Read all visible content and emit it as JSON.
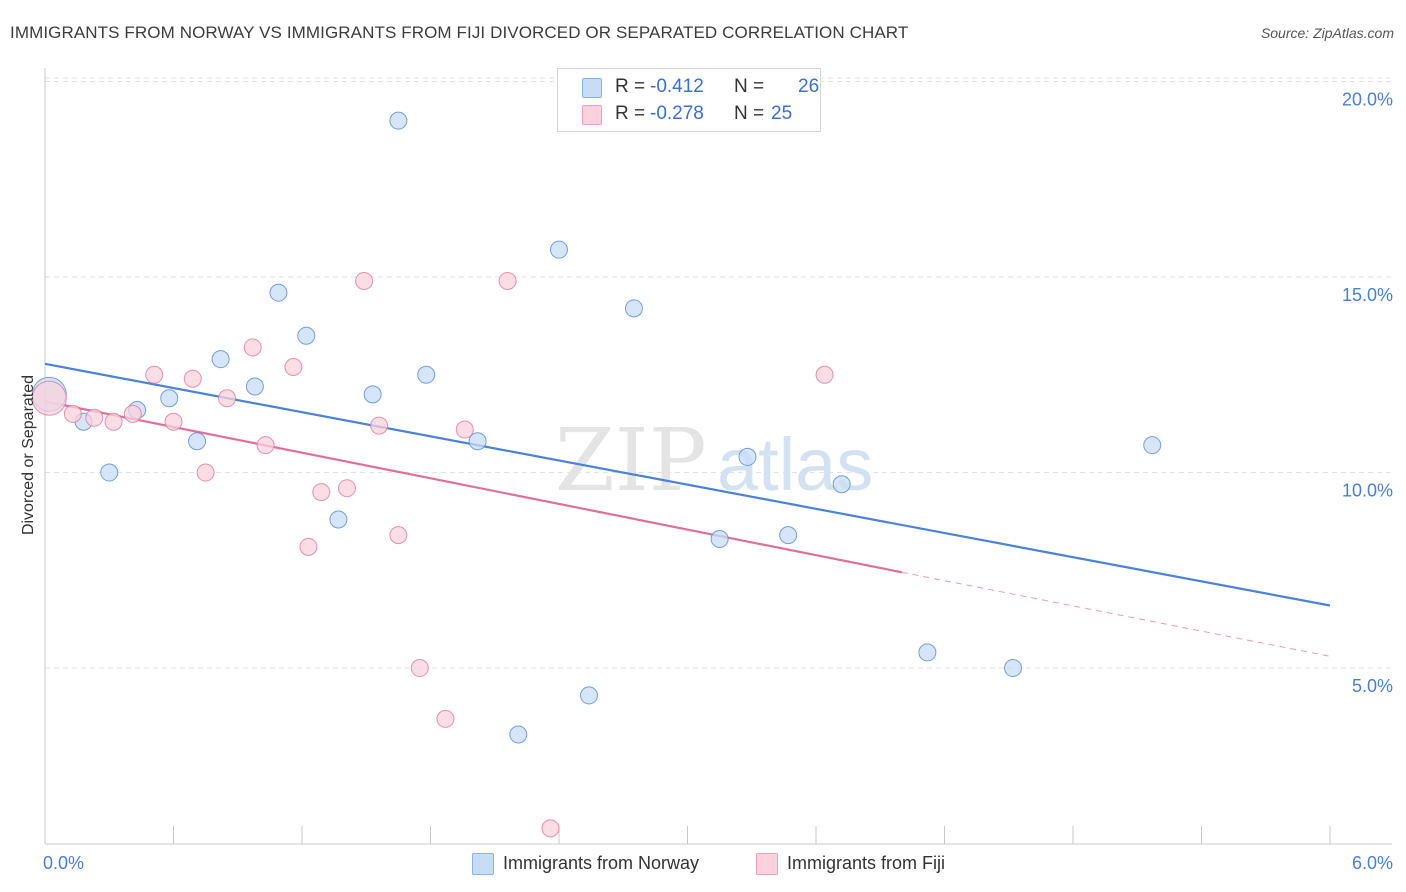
{
  "header": {
    "title": "IMMIGRANTS FROM NORWAY VS IMMIGRANTS FROM FIJI DIVORCED OR SEPARATED CORRELATION CHART",
    "source": "Source: ZipAtlas.com"
  },
  "watermark": {
    "zip": "ZIP",
    "atlas": "atlas"
  },
  "legend_top": {
    "rows": [
      {
        "r_label": "R =",
        "r_value": "-0.412",
        "n_label": "N =",
        "n_value": "26",
        "color": "#a9c8f0"
      },
      {
        "r_label": "R =",
        "r_value": "-0.278",
        "n_label": "N =",
        "n_value": "25",
        "color": "#f6b8cb"
      }
    ]
  },
  "bottom_legend": {
    "items": [
      {
        "label": "Immigrants from Norway",
        "color": "#a9c8f0"
      },
      {
        "label": "Immigrants from Fiji",
        "color": "#f6b8cb"
      }
    ]
  },
  "chart_data": {
    "type": "scatter",
    "title": "IMMIGRANTS FROM NORWAY VS IMMIGRANTS FROM FIJI DIVORCED OR SEPARATED CORRELATION CHART",
    "xlabel": "",
    "ylabel": "Divorced or Separated",
    "xlim": [
      0,
      6.0
    ],
    "ylim": [
      0.5,
      20.5
    ],
    "x_tick_labels": [
      "0.0%",
      "6.0%"
    ],
    "y_ticks": [
      5,
      10,
      15,
      20
    ],
    "y_tick_labels": [
      "5.0%",
      "10.0%",
      "15.0%",
      "20.0%"
    ],
    "grid": "horizontal dashed",
    "legend_position": "top-center",
    "series": [
      {
        "name": "Immigrants from Norway",
        "color": "#4a83d6",
        "fill": "#c8dcf5",
        "points": [
          {
            "x": 0.02,
            "y": 12.0,
            "big": true
          },
          {
            "x": 0.18,
            "y": 11.3
          },
          {
            "x": 0.3,
            "y": 10.0
          },
          {
            "x": 0.43,
            "y": 11.6
          },
          {
            "x": 0.58,
            "y": 11.9
          },
          {
            "x": 0.71,
            "y": 10.8
          },
          {
            "x": 0.82,
            "y": 12.9
          },
          {
            "x": 0.98,
            "y": 12.2
          },
          {
            "x": 1.09,
            "y": 14.6
          },
          {
            "x": 1.22,
            "y": 13.5
          },
          {
            "x": 1.37,
            "y": 8.8
          },
          {
            "x": 1.53,
            "y": 12.0
          },
          {
            "x": 1.65,
            "y": 19.0
          },
          {
            "x": 1.78,
            "y": 12.5
          },
          {
            "x": 2.02,
            "y": 10.8
          },
          {
            "x": 2.21,
            "y": 3.3
          },
          {
            "x": 2.4,
            "y": 15.7
          },
          {
            "x": 2.54,
            "y": 4.3
          },
          {
            "x": 2.75,
            "y": 14.2
          },
          {
            "x": 3.15,
            "y": 8.3
          },
          {
            "x": 3.28,
            "y": 10.4
          },
          {
            "x": 3.47,
            "y": 8.4
          },
          {
            "x": 3.72,
            "y": 9.7
          },
          {
            "x": 4.12,
            "y": 5.4
          },
          {
            "x": 4.52,
            "y": 5.0
          },
          {
            "x": 5.17,
            "y": 10.7
          }
        ],
        "trend": {
          "x0": 0.0,
          "y0": 12.78,
          "x1": 6.0,
          "y1": 6.6
        }
      },
      {
        "name": "Immigrants from Fiji",
        "color": "#e0709a",
        "fill": "#f9d2de",
        "points": [
          {
            "x": 0.02,
            "y": 11.9,
            "big": true
          },
          {
            "x": 0.13,
            "y": 11.5
          },
          {
            "x": 0.23,
            "y": 11.4
          },
          {
            "x": 0.32,
            "y": 11.3
          },
          {
            "x": 0.41,
            "y": 11.5
          },
          {
            "x": 0.51,
            "y": 12.5
          },
          {
            "x": 0.6,
            "y": 11.3
          },
          {
            "x": 0.69,
            "y": 12.4
          },
          {
            "x": 0.75,
            "y": 10.0
          },
          {
            "x": 0.85,
            "y": 11.9
          },
          {
            "x": 0.97,
            "y": 13.2
          },
          {
            "x": 1.03,
            "y": 10.7
          },
          {
            "x": 1.16,
            "y": 12.7
          },
          {
            "x": 1.23,
            "y": 8.1
          },
          {
            "x": 1.29,
            "y": 9.5
          },
          {
            "x": 1.41,
            "y": 9.6
          },
          {
            "x": 1.49,
            "y": 14.9
          },
          {
            "x": 1.56,
            "y": 11.2
          },
          {
            "x": 1.65,
            "y": 8.4
          },
          {
            "x": 1.75,
            "y": 5.0
          },
          {
            "x": 1.87,
            "y": 3.7
          },
          {
            "x": 1.96,
            "y": 11.1
          },
          {
            "x": 2.16,
            "y": 14.9
          },
          {
            "x": 2.36,
            "y": 0.9
          },
          {
            "x": 3.64,
            "y": 12.5
          }
        ],
        "trend": {
          "x0": 0.0,
          "y0": 11.82,
          "x1": 4.0,
          "y1": 7.45
        },
        "trend_dashed": {
          "x0": 4.0,
          "y0": 7.45,
          "x1": 6.0,
          "y1": 5.3
        }
      }
    ]
  }
}
